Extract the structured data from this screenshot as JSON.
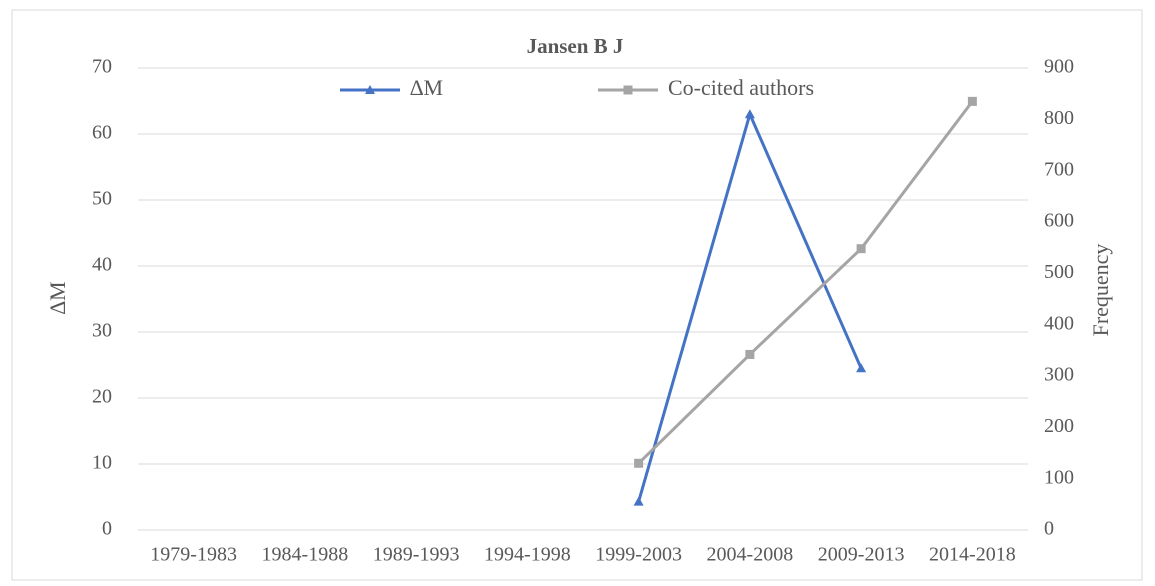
{
  "chart_data": {
    "type": "line",
    "title": "Jansen B J",
    "categories": [
      "1979-1983",
      "1984-1988",
      "1989-1993",
      "1994-1998",
      "1999-2003",
      "2004-2008",
      "2009-2013",
      "2014-2018"
    ],
    "series": [
      {
        "name": "∆M",
        "color": "#4472c4",
        "marker": "triangle",
        "values": [
          null,
          null,
          null,
          null,
          4.3,
          63,
          24.5,
          null
        ]
      },
      {
        "name": "Co-cited authors",
        "color": "#a5a5a5",
        "marker": "square",
        "axis": "y2",
        "values": [
          null,
          null,
          null,
          null,
          130,
          342,
          548,
          835
        ]
      }
    ],
    "ylabel": "∆M",
    "y2label": "Frequency",
    "ylim": [
      0,
      70
    ],
    "yticks": [
      0,
      10,
      20,
      30,
      40,
      50,
      60,
      70
    ],
    "y2lim": [
      0,
      900
    ],
    "y2ticks": [
      0,
      100,
      200,
      300,
      400,
      500,
      600,
      700,
      800,
      900
    ],
    "grid": true,
    "legend": "top"
  }
}
